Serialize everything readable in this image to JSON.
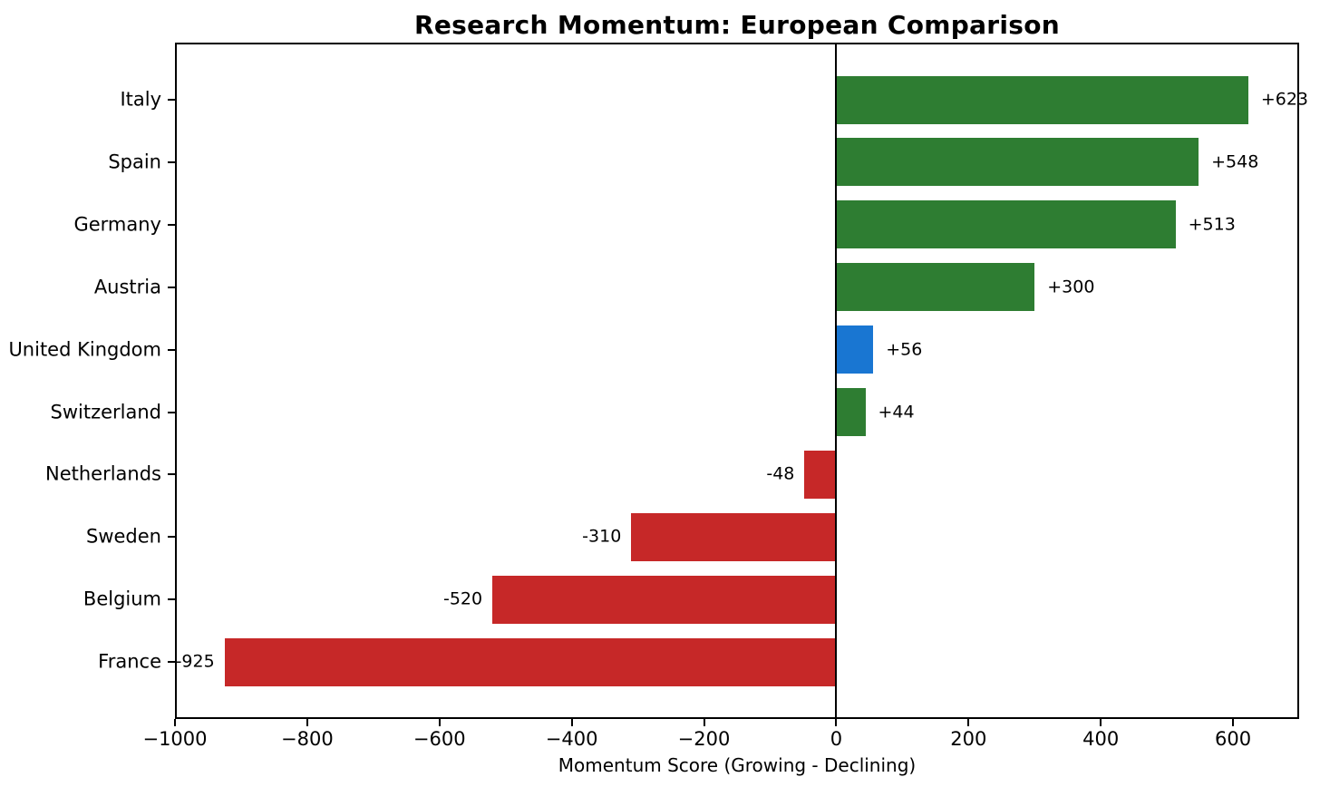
{
  "chart_data": {
    "type": "bar",
    "orientation": "horizontal",
    "title": "Research Momentum: European Comparison",
    "xlabel": "Momentum Score (Growing - Declining)",
    "ylabel": "",
    "categories": [
      "Italy",
      "Spain",
      "Germany",
      "Austria",
      "United Kingdom",
      "Switzerland",
      "Netherlands",
      "Sweden",
      "Belgium",
      "France"
    ],
    "values": [
      623,
      548,
      513,
      300,
      56,
      44,
      -48,
      -310,
      -520,
      -925
    ],
    "value_labels": [
      "+623",
      "+548",
      "+513",
      "+300",
      "+56",
      "+44",
      "-48",
      "-310",
      "-520",
      "-925"
    ],
    "bar_colors": [
      "#2e7d32",
      "#2e7d32",
      "#2e7d32",
      "#2e7d32",
      "#1976d2",
      "#2e7d32",
      "#c62828",
      "#c62828",
      "#c62828",
      "#c62828"
    ],
    "xlim": [
      -1000,
      700
    ],
    "xticks": [
      -1000,
      -800,
      -600,
      -400,
      -200,
      0,
      200,
      400,
      600
    ],
    "xtick_labels": [
      "−1000",
      "−800",
      "−600",
      "−400",
      "−200",
      "0",
      "200",
      "400",
      "600"
    ],
    "grid": false,
    "zero_line": true,
    "legend": null
  },
  "colors": {
    "positive": "#2e7d32",
    "negative": "#c62828",
    "highlight": "#1976d2",
    "axis": "#000000",
    "background": "#ffffff",
    "text": "#000000"
  }
}
